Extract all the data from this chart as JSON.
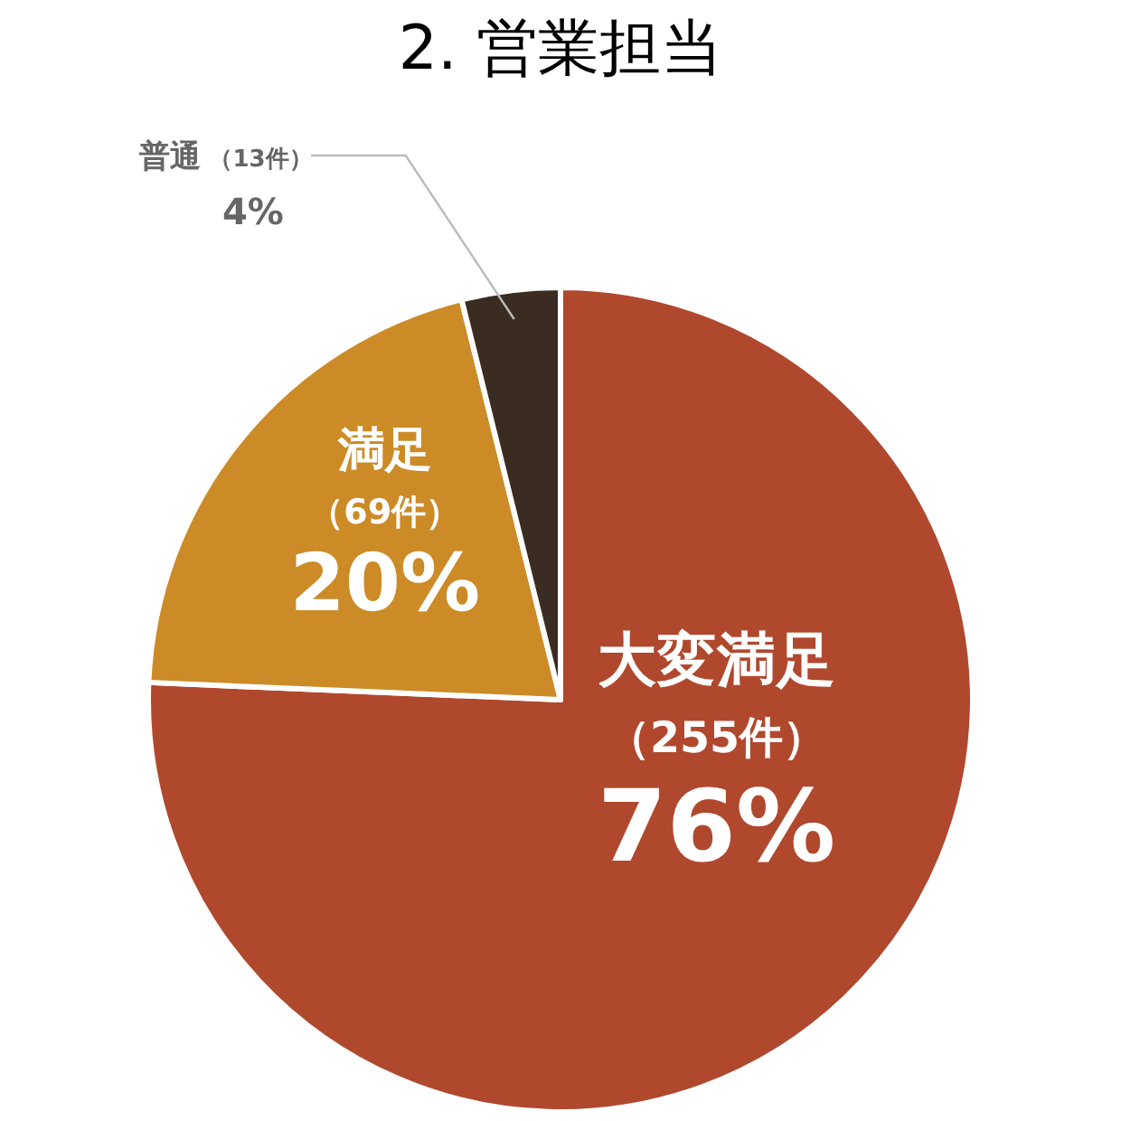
{
  "chart_data": {
    "type": "pie",
    "title": "2. 営業担当",
    "categories": [
      "大変満足",
      "満足",
      "普通"
    ],
    "values": [
      255,
      69,
      13
    ],
    "value_labels": [
      "（255件）",
      "（69件）",
      "（13件）"
    ],
    "annotations": [
      "76%",
      "20%",
      "4%"
    ],
    "colors": [
      "#b0482e",
      "#cc8b26",
      "#3a2c21"
    ]
  }
}
